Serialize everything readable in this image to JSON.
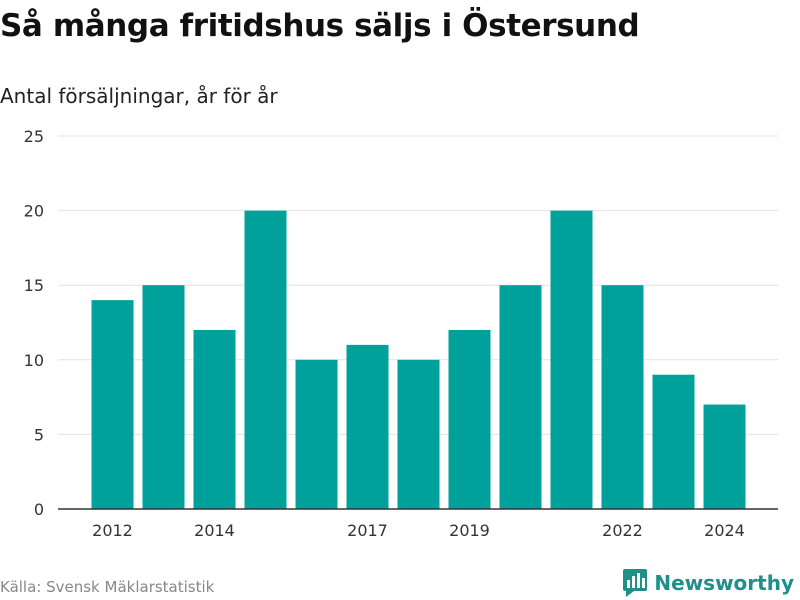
{
  "header": {
    "title": "Så många fritidshus säljs i Östersund",
    "subtitle": "Antal försäljningar, år för år"
  },
  "footer": {
    "source": "Källa: Svensk Mäklarstatistik",
    "brand": "Newsworthy",
    "brand_icon": "bar-chart-speech-bubble-icon"
  },
  "colors": {
    "bar": "#00a19a",
    "grid": "#e3e3e3",
    "axis": "#333333",
    "brand": "#1f8f89"
  },
  "chart_data": {
    "type": "bar",
    "categories": [
      "2012",
      "2013",
      "2014",
      "2015",
      "2016",
      "2017",
      "2018",
      "2019",
      "2020",
      "2021",
      "2022",
      "2023",
      "2024"
    ],
    "values": [
      14,
      15,
      12,
      20,
      10,
      11,
      10,
      12,
      15,
      20,
      15,
      9,
      7
    ],
    "x_tick_labels": [
      "2012",
      "2014",
      "2017",
      "2019",
      "2022",
      "2024"
    ],
    "y_ticks": [
      0,
      5,
      10,
      15,
      20,
      25
    ],
    "ylim": [
      0,
      25
    ],
    "grid": true,
    "legend": false
  }
}
